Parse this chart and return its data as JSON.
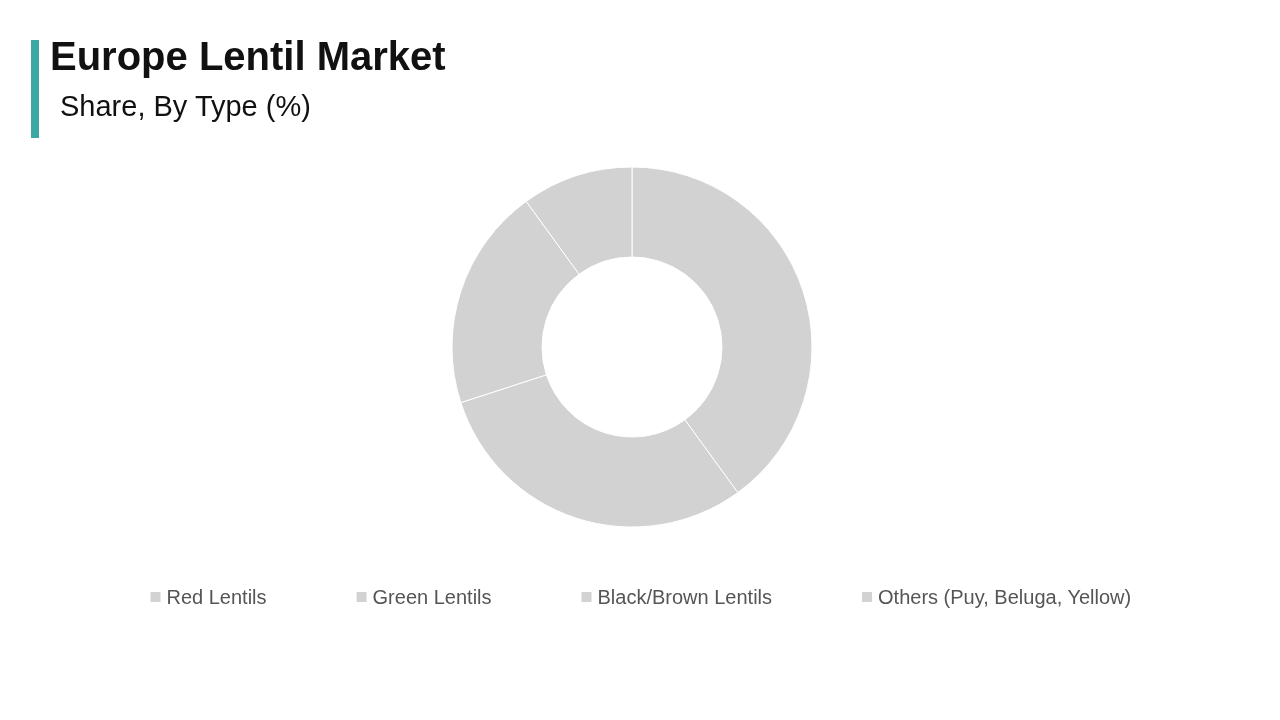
{
  "chart_data": {
    "type": "donut",
    "title": "Europe Lentil Market",
    "subtitle": "Share, By Type (%)",
    "categories": [
      "Red Lentils",
      "Green Lentils",
      "Black/Brown Lentils",
      "Others (Puy, Beluga, Yellow)"
    ],
    "values": [
      40,
      30,
      20,
      10
    ],
    "colors": [
      "#d3d2d2",
      "#d3d2d2",
      "#d3d2d2",
      "#d3d2d2"
    ],
    "legend": "bottom"
  }
}
